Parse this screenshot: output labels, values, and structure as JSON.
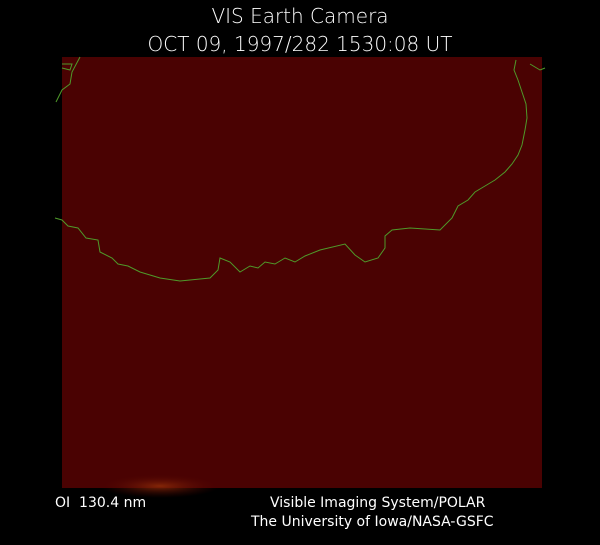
{
  "header": {
    "title": "VIS Earth Camera",
    "subtitle": "OCT 09, 1997/282 1530:08 UT"
  },
  "footer": {
    "filter": "OI  130.4 nm",
    "instrument": "Visible Imaging System/POLAR",
    "institution": "The University of Iowa/NASA-GSFC"
  }
}
